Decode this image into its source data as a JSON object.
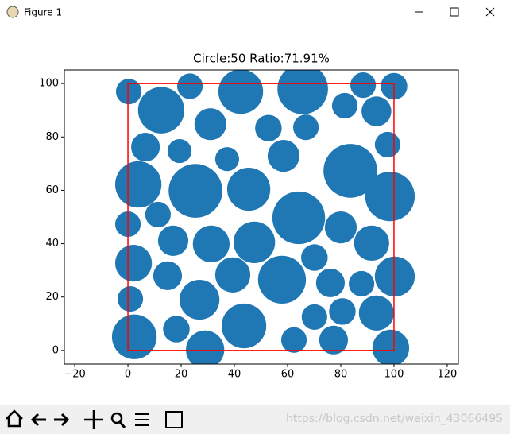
{
  "window": {
    "title": "Figure 1",
    "watermark": "https://blog.csdn.net/weixin_43066495"
  },
  "chart_data": {
    "type": "circles",
    "title": "Circle:50 Ratio:71.91%",
    "color": "#1f77b4",
    "x": [
      0.3,
      12.5,
      23.3,
      42.4,
      65.7,
      88.4,
      100,
      81.5,
      93.4,
      31,
      52.8,
      66.9,
      6.6,
      19.4,
      37.3,
      58.5,
      97.6,
      83.6,
      3.9,
      25.4,
      45.4,
      98.5,
      64.2,
      11.3,
      0,
      17,
      31.3,
      47.5,
      80,
      91.6,
      2.1,
      70.1,
      14.9,
      39.4,
      57.9,
      76.1,
      87.8,
      100.3,
      0.9,
      26.9,
      80.6,
      93.4,
      70.1,
      18.2,
      43.6,
      2.4,
      62.4,
      77.3,
      29,
      98.8
    ],
    "y": [
      97,
      90,
      99,
      97,
      98,
      99.4,
      99,
      91.7,
      89.6,
      84.8,
      83.3,
      83.6,
      76.2,
      74.7,
      71.7,
      72.9,
      77.1,
      67.3,
      62.2,
      59.8,
      60.4,
      57.7,
      49.7,
      50.9,
      47.3,
      41.1,
      39.9,
      40.5,
      46.1,
      40.2,
      32.7,
      34.8,
      28,
      28.3,
      26.5,
      25.3,
      25,
      27.7,
      19.3,
      19,
      14.6,
      14,
      12.5,
      8,
      9.2,
      5.1,
      3.9,
      3.9,
      0.3,
      0.9
    ],
    "radii": [
      4.8,
      8.7,
      4.8,
      8.4,
      9.5,
      4.8,
      5,
      4.8,
      5.6,
      6,
      5,
      4.8,
      5.4,
      4.5,
      4.5,
      6,
      4.8,
      10.1,
      8.7,
      10.1,
      8.1,
      9.3,
      9.9,
      4.8,
      4.8,
      5.7,
      6.9,
      7.8,
      6,
      6.6,
      6.9,
      5,
      5.4,
      6.6,
      9,
      5.4,
      4.8,
      7.5,
      4.8,
      7.5,
      5,
      6.6,
      4.8,
      5,
      8.4,
      8.4,
      4.8,
      5.4,
      7.2,
      6.9
    ],
    "square": {
      "color": "#ff0000",
      "x": [
        0,
        100,
        100,
        0,
        0
      ],
      "y": [
        0,
        0,
        100,
        100,
        0
      ]
    },
    "xlim": [
      -23.9,
      124.2
    ],
    "ylim": [
      -5.1,
      105.1
    ],
    "xticks": [
      {
        "value": -20,
        "label": "−20"
      },
      0,
      20,
      40,
      60,
      80,
      100,
      120
    ],
    "yticks": [
      0,
      20,
      40,
      60,
      80,
      100
    ]
  }
}
